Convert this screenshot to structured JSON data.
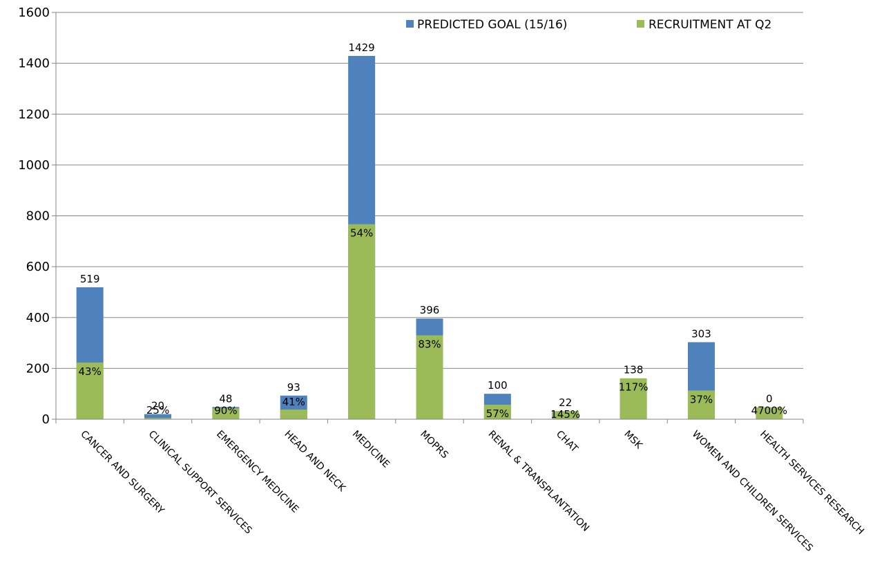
{
  "chart_data": {
    "type": "bar",
    "stacked": "overlay",
    "title": "",
    "xlabel": "",
    "ylabel": "",
    "ylim": [
      0,
      1600
    ],
    "yticks": [
      0,
      200,
      400,
      600,
      800,
      1000,
      1200,
      1400,
      1600
    ],
    "grid": true,
    "legend_position": "top-right",
    "categories": [
      "CANCER AND SURGERY",
      "CLINICAL SUPPORT SERVICES",
      "EMERGENCY MEDICINE",
      "HEAD AND NECK",
      "MEDICINE",
      "MOPRS",
      "RENAL & TRANSPLANTATION",
      "CHAT",
      "MSK",
      "WOMEN AND CHILDREN SERVICES",
      "HEALTH SERVICES RESEARCH"
    ],
    "series": [
      {
        "name": "PREDICTED GOAL (15/16)",
        "color": "#4F81BD",
        "values": [
          519,
          20,
          48,
          93,
          1429,
          396,
          100,
          22,
          138,
          303,
          0
        ],
        "labels": [
          "519",
          "20",
          "48",
          "93",
          "1429",
          "396",
          "100",
          "22",
          "138",
          "303",
          "0"
        ]
      },
      {
        "name": "RECRUITMENT AT Q2",
        "color": "#9BBB59",
        "values": [
          223,
          5,
          43,
          38,
          767,
          330,
          57,
          32,
          161,
          113,
          47
        ],
        "labels": [
          "43%",
          "25%",
          "90%",
          "41%",
          "54%",
          "83%",
          "57%",
          "145%",
          "117%",
          "37%",
          "4700%"
        ]
      }
    ]
  }
}
